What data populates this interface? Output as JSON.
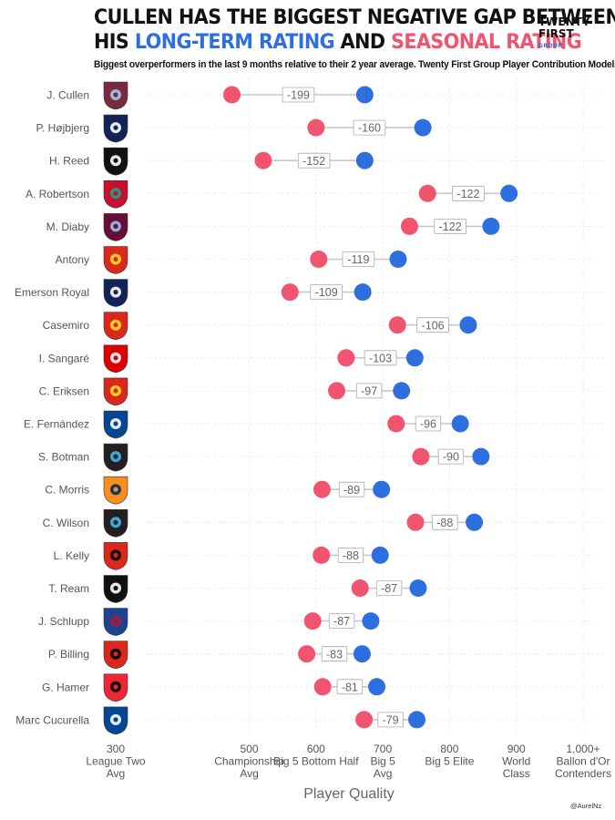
{
  "header": {
    "title_line1": "CULLEN HAS THE BIGGEST NEGATIVE GAP BETWEEN",
    "title_line2_prefix": "HIS ",
    "title_line2_blue": "LONG-TERM RATING",
    "title_line2_mid": " AND ",
    "title_line2_red": "SEASONAL RATING",
    "subtitle": "Biggest overperformers in the last 9 months relative to their 2 year average. Twenty First Group Player Contribution Models.",
    "brand_line1": "TWENTY",
    "brand_line2": "FIRST",
    "brand_line3": "GROUP_",
    "credit": "@AurelNz"
  },
  "chart_data": {
    "type": "dumbbell",
    "xlabel": "Player Quality",
    "xlim": [
      300,
      1000
    ],
    "ticks": [
      {
        "value": 300,
        "lines": [
          "300",
          "League Two",
          "Avg"
        ]
      },
      {
        "value": 500,
        "lines": [
          "500",
          "Championship",
          "Avg"
        ]
      },
      {
        "value": 600,
        "lines": [
          "600",
          "Big 5 Bottom Half"
        ]
      },
      {
        "value": 700,
        "lines": [
          "700",
          "Big 5",
          "Avg"
        ]
      },
      {
        "value": 800,
        "lines": [
          "800",
          "Big 5 Elite"
        ]
      },
      {
        "value": 900,
        "lines": [
          "900",
          "World",
          "Class"
        ]
      },
      {
        "value": 1000,
        "lines": [
          "1,000+",
          "Ballon d'Or",
          "Contenders"
        ]
      }
    ],
    "colors": {
      "seasonal": "#f0546e",
      "long_term": "#2e6fe0"
    },
    "grid": true,
    "players": [
      {
        "name": "J. Cullen",
        "club": "Burnley",
        "seasonal": 474,
        "long_term": 673,
        "gap": "-199"
      },
      {
        "name": "P. Højbjerg",
        "club": "Tottenham",
        "seasonal": 600,
        "long_term": 760,
        "gap": "-160"
      },
      {
        "name": "H. Reed",
        "club": "Fulham",
        "seasonal": 521,
        "long_term": 673,
        "gap": "-152"
      },
      {
        "name": "A. Robertson",
        "club": "Liverpool",
        "seasonal": 767,
        "long_term": 889,
        "gap": "-122"
      },
      {
        "name": "M. Diaby",
        "club": "Aston Villa",
        "seasonal": 740,
        "long_term": 862,
        "gap": "-122"
      },
      {
        "name": "Antony",
        "club": "Manchester United",
        "seasonal": 604,
        "long_term": 723,
        "gap": "-119"
      },
      {
        "name": "Emerson Royal",
        "club": "Tottenham",
        "seasonal": 561,
        "long_term": 670,
        "gap": "-109"
      },
      {
        "name": "Casemiro",
        "club": "Manchester United",
        "seasonal": 722,
        "long_term": 828,
        "gap": "-106"
      },
      {
        "name": "I. Sangaré",
        "club": "Nottingham Forest",
        "seasonal": 645,
        "long_term": 748,
        "gap": "-103"
      },
      {
        "name": "C. Eriksen",
        "club": "Manchester United",
        "seasonal": 631,
        "long_term": 728,
        "gap": "-97"
      },
      {
        "name": "E. Fernández",
        "club": "Chelsea",
        "seasonal": 720,
        "long_term": 816,
        "gap": "-96"
      },
      {
        "name": "S. Botman",
        "club": "Newcastle",
        "seasonal": 757,
        "long_term": 847,
        "gap": "-90"
      },
      {
        "name": "C. Morris",
        "club": "Luton Town",
        "seasonal": 609,
        "long_term": 698,
        "gap": "-89"
      },
      {
        "name": "C. Wilson",
        "club": "Newcastle",
        "seasonal": 749,
        "long_term": 837,
        "gap": "-88"
      },
      {
        "name": "L. Kelly",
        "club": "Bournemouth",
        "seasonal": 608,
        "long_term": 696,
        "gap": "-88"
      },
      {
        "name": "T. Ream",
        "club": "Fulham",
        "seasonal": 666,
        "long_term": 753,
        "gap": "-87"
      },
      {
        "name": "J. Schlupp",
        "club": "Crystal Palace",
        "seasonal": 595,
        "long_term": 682,
        "gap": "-87"
      },
      {
        "name": "P. Billing",
        "club": "Bournemouth",
        "seasonal": 586,
        "long_term": 669,
        "gap": "-83"
      },
      {
        "name": "G. Hamer",
        "club": "Sheffield United",
        "seasonal": 610,
        "long_term": 691,
        "gap": "-81"
      },
      {
        "name": "Marc Cucurella",
        "club": "Chelsea",
        "seasonal": 672,
        "long_term": 751,
        "gap": "-79"
      }
    ],
    "club_styles": {
      "Burnley": {
        "primary": "#7a2a3f",
        "secondary": "#9fc8e8"
      },
      "Tottenham": {
        "primary": "#132257",
        "secondary": "#ffffff"
      },
      "Fulham": {
        "primary": "#111111",
        "secondary": "#ffffff"
      },
      "Liverpool": {
        "primary": "#c8102e",
        "secondary": "#0fa98b"
      },
      "Aston Villa": {
        "primary": "#670e36",
        "secondary": "#95bfe5"
      },
      "Manchester United": {
        "primary": "#da291c",
        "secondary": "#fbe122"
      },
      "Nottingham Forest": {
        "primary": "#dd0000",
        "secondary": "#ffffff"
      },
      "Chelsea": {
        "primary": "#034694",
        "secondary": "#ffffff"
      },
      "Newcastle": {
        "primary": "#241f20",
        "secondary": "#41b6e6"
      },
      "Luton Town": {
        "primary": "#f78f1e",
        "secondary": "#002d62"
      },
      "Bournemouth": {
        "primary": "#da291c",
        "secondary": "#000000"
      },
      "Crystal Palace": {
        "primary": "#1b458f",
        "secondary": "#c4122e"
      },
      "Sheffield United": {
        "primary": "#ee2737",
        "secondary": "#000000"
      }
    }
  }
}
